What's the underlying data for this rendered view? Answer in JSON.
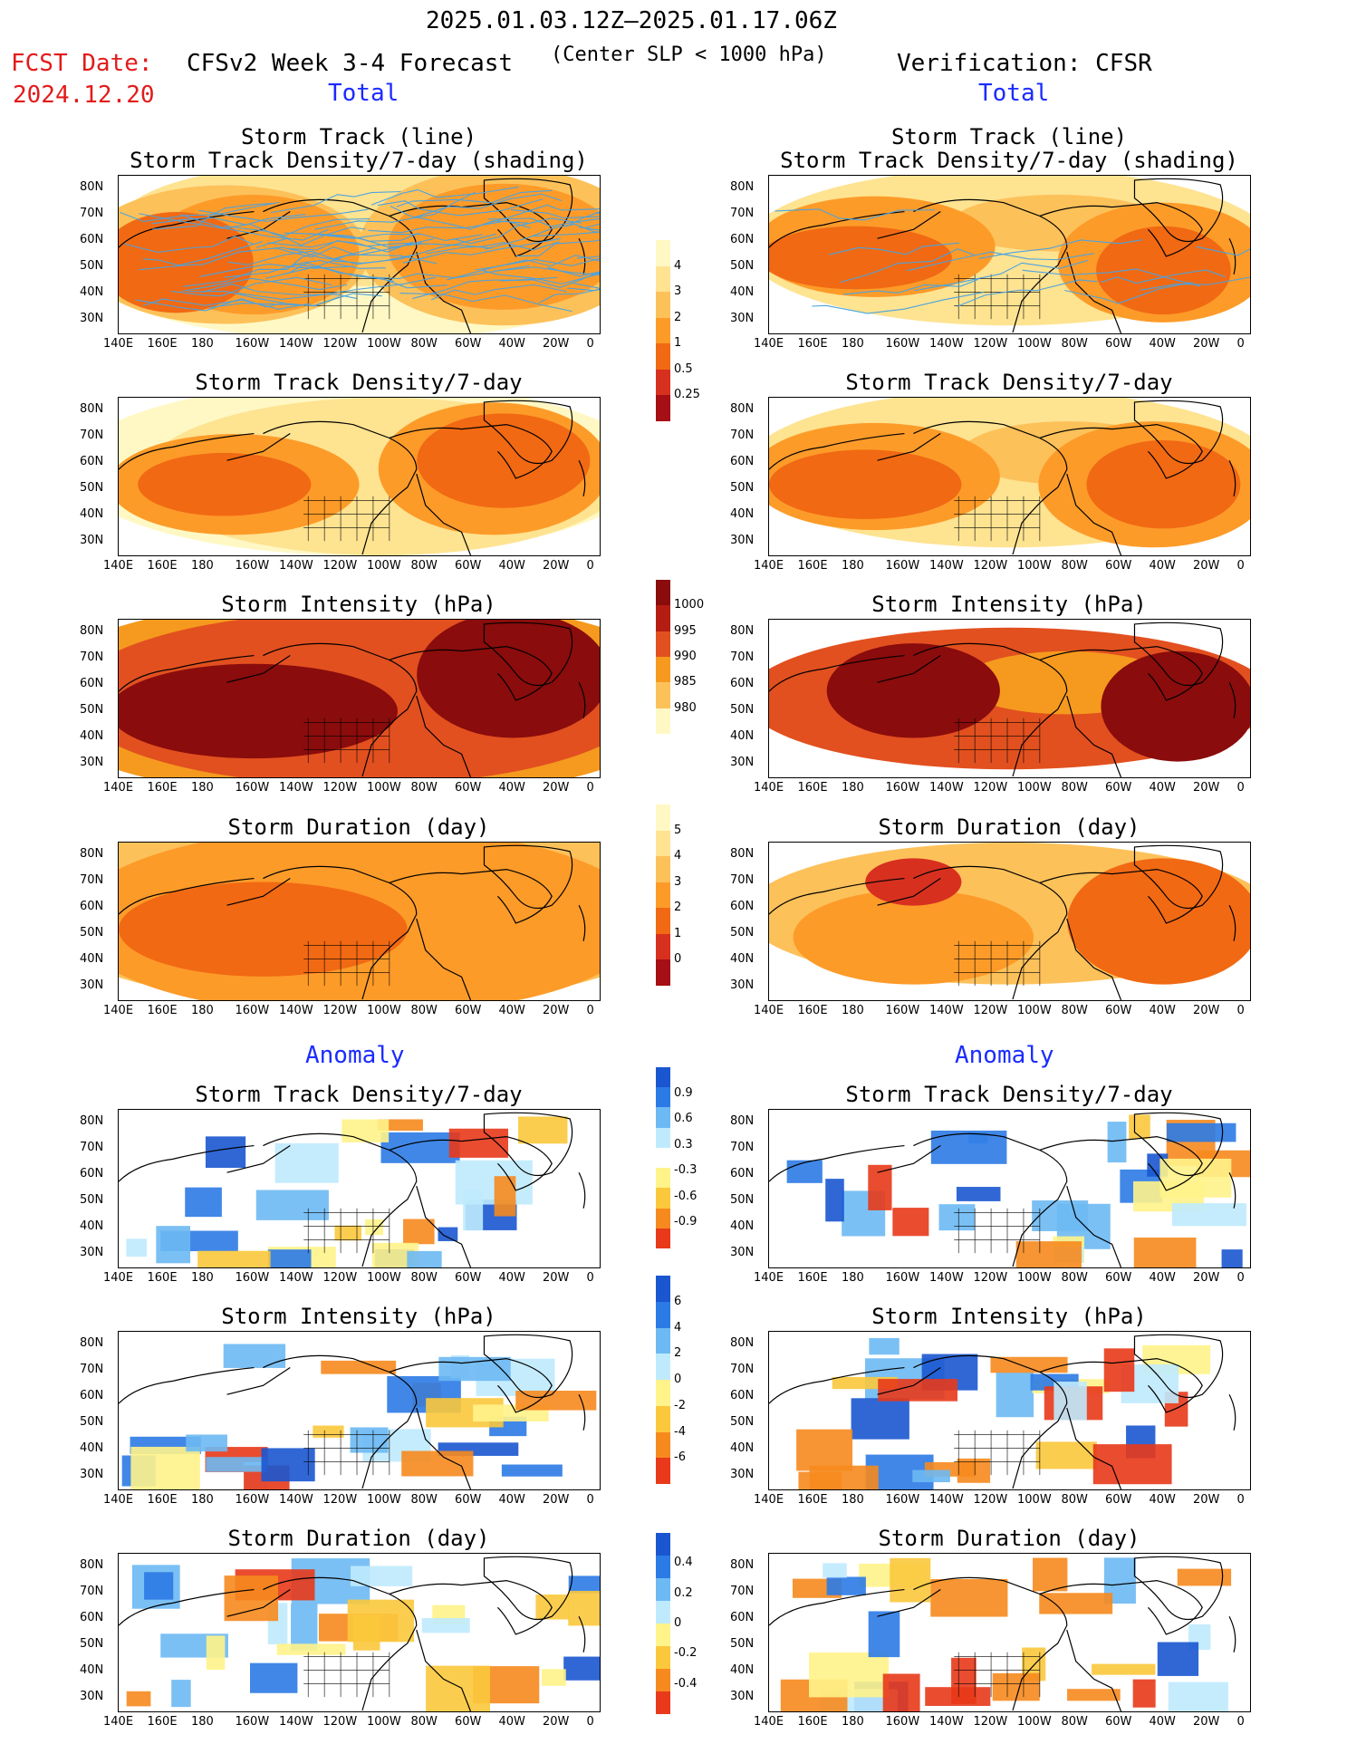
{
  "header": {
    "period": "2025.01.03.12Z–2025.01.17.06Z",
    "fcst_label": "FCST Date:",
    "fcst_date": "2024.12.20",
    "model_title": "CFSv2 Week 3-4 Forecast",
    "criterion": "(Center SLP < 1000 hPa)",
    "verification": "Verification: CFSR",
    "total_label": "Total",
    "anomaly_label": "Anomaly"
  },
  "axis": {
    "lat_ticks": [
      "80N",
      "70N",
      "60N",
      "50N",
      "40N",
      "30N"
    ],
    "lon_ticks": [
      "140E",
      "160E",
      "180",
      "160W",
      "140W",
      "120W",
      "100W",
      "80W",
      "60W",
      "40W",
      "20W",
      "0"
    ]
  },
  "panel_titles": {
    "track_line": "Storm Track (line)",
    "track_density_shading": "Storm Track Density/7-day (shading)",
    "track_density": "Storm Track Density/7-day",
    "intensity": "Storm Intensity (hPa)",
    "duration": "Storm Duration (day)"
  },
  "colorbars": {
    "density": {
      "labels": [
        "4",
        "3",
        "2",
        "1",
        "0.5",
        "0.25"
      ],
      "colors": [
        "#a50f15",
        "#d7301f",
        "#f16913",
        "#fd9b29",
        "#fdc15a",
        "#fee391",
        "#fff8c4"
      ]
    },
    "intensity": {
      "labels": [
        "1000",
        "995",
        "990",
        "985",
        "980"
      ],
      "colors": [
        "#fff8c4",
        "#fdc15a",
        "#f59a1e",
        "#e2501f",
        "#b51d12",
        "#8a0c0c"
      ]
    },
    "duration": {
      "labels": [
        "5",
        "4",
        "3",
        "2",
        "1",
        "0"
      ],
      "colors": [
        "#a50f15",
        "#d7301f",
        "#f16913",
        "#fd9b29",
        "#fdc15a",
        "#fee391",
        "#fff8c4"
      ]
    },
    "density_anom": {
      "labels": [
        "0.9",
        "0.6",
        "0.3",
        "-0.3",
        "-0.6",
        "-0.9"
      ],
      "colors": [
        "#e8391a",
        "#f68a1e",
        "#fbc83c",
        "#fff38a",
        "#ffffff",
        "#bfeafd",
        "#6db9f3",
        "#2b7ae6",
        "#1a56d0"
      ]
    },
    "intensity_anom": {
      "labels": [
        "6",
        "4",
        "2",
        "0",
        "-2",
        "-4",
        "-6"
      ],
      "colors": [
        "#e8391a",
        "#f68a1e",
        "#fbc83c",
        "#fff38a",
        "#bfeafd",
        "#6db9f3",
        "#2b7ae6",
        "#1a56d0"
      ]
    },
    "duration_anom": {
      "labels": [
        "0.4",
        "0.2",
        "0",
        "-0.2",
        "-0.4"
      ],
      "colors": [
        "#e8391a",
        "#f68a1e",
        "#fbc83c",
        "#fff38a",
        "#bfeafd",
        "#6db9f3",
        "#2b7ae6",
        "#1a56d0"
      ]
    }
  },
  "chart_data": [
    {
      "type": "heatmap",
      "panel": "forecast-total-storm-track",
      "title": "Storm Track (line) / Storm Track Density/7-day (shading)",
      "x_range": [
        "140E",
        "0"
      ],
      "y_range": [
        "30N",
        "80N"
      ]
    },
    {
      "type": "heatmap",
      "panel": "verification-total-storm-track",
      "title": "Storm Track (line) / Storm Track Density/7-day (shading)",
      "x_range": [
        "140E",
        "0"
      ],
      "y_range": [
        "30N",
        "80N"
      ]
    },
    {
      "type": "heatmap",
      "panel": "forecast-total-density",
      "title": "Storm Track Density/7-day"
    },
    {
      "type": "heatmap",
      "panel": "verification-total-density",
      "title": "Storm Track Density/7-day"
    },
    {
      "type": "heatmap",
      "panel": "forecast-total-intensity",
      "title": "Storm Intensity (hPa)"
    },
    {
      "type": "heatmap",
      "panel": "verification-total-intensity",
      "title": "Storm Intensity (hPa)"
    },
    {
      "type": "heatmap",
      "panel": "forecast-total-duration",
      "title": "Storm Duration (day)"
    },
    {
      "type": "heatmap",
      "panel": "verification-total-duration",
      "title": "Storm Duration (day)"
    },
    {
      "type": "heatmap",
      "panel": "forecast-anomaly-density",
      "title": "Storm Track Density/7-day"
    },
    {
      "type": "heatmap",
      "panel": "verification-anomaly-density",
      "title": "Storm Track Density/7-day"
    },
    {
      "type": "heatmap",
      "panel": "forecast-anomaly-intensity",
      "title": "Storm Intensity (hPa)"
    },
    {
      "type": "heatmap",
      "panel": "verification-anomaly-intensity",
      "title": "Storm Intensity (hPa)"
    },
    {
      "type": "heatmap",
      "panel": "forecast-anomaly-duration",
      "title": "Storm Duration (day)"
    },
    {
      "type": "heatmap",
      "panel": "verification-anomaly-duration",
      "title": "Storm Duration (day)"
    }
  ]
}
